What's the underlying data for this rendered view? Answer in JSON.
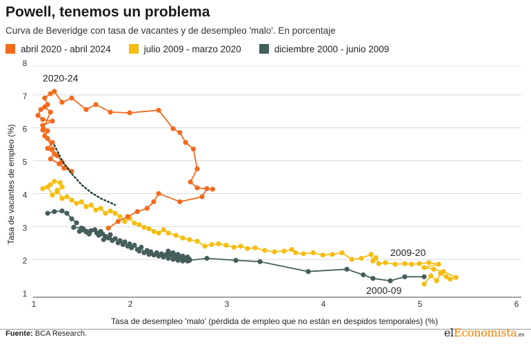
{
  "title": "Powell, tenemos un problema",
  "subtitle": "Curva de Beveridge con tasa de vacantes y de desempleo 'malo'. En porcentaje",
  "source_label": "Fuente:",
  "source_text": " BCA Research.",
  "logo": {
    "part1": "el",
    "part2": "Economista",
    "part3": ".es"
  },
  "colors": {
    "orange": "#f26a1b",
    "yellow": "#f5bd0f",
    "darkgray": "#445e5c",
    "dotted": "#173d33"
  },
  "chart_data": {
    "type": "line",
    "title": "Powell, tenemos un problema",
    "xlabel": "Tasa de desempleo 'malo' (pérdida de empleo que no están en despidos temporales) (%)",
    "ylabel": "Tasa de vacantes de empleo (%)",
    "xlim": [
      1,
      6
    ],
    "ylim": [
      1,
      8
    ],
    "xticks": [
      1,
      2,
      3,
      4,
      5,
      6
    ],
    "yticks": [
      1,
      2,
      3,
      4,
      5,
      6,
      7,
      8
    ],
    "grid": "horizontal",
    "legend_position": "top-left",
    "series": [
      {
        "name": "diciembre 2000 - junio 2009",
        "color": "darkgray",
        "points": [
          [
            1.15,
            3.55
          ],
          [
            1.22,
            3.6
          ],
          [
            1.3,
            3.62
          ],
          [
            1.35,
            3.55
          ],
          [
            1.4,
            3.38
          ],
          [
            1.45,
            3.26
          ],
          [
            1.42,
            3.12
          ],
          [
            1.5,
            3.1
          ],
          [
            1.48,
            3.0
          ],
          [
            1.55,
            2.98
          ],
          [
            1.52,
            3.08
          ],
          [
            1.6,
            3.02
          ],
          [
            1.58,
            2.92
          ],
          [
            1.64,
            3.05
          ],
          [
            1.66,
            2.95
          ],
          [
            1.68,
            2.88
          ],
          [
            1.7,
            3.0
          ],
          [
            1.72,
            2.92
          ],
          [
            1.75,
            2.85
          ],
          [
            1.73,
            2.75
          ],
          [
            1.78,
            2.8
          ],
          [
            1.8,
            2.9
          ],
          [
            1.82,
            2.72
          ],
          [
            1.85,
            2.78
          ],
          [
            1.88,
            2.65
          ],
          [
            1.9,
            2.72
          ],
          [
            1.93,
            2.6
          ],
          [
            1.95,
            2.68
          ],
          [
            1.98,
            2.55
          ],
          [
            2.0,
            2.62
          ],
          [
            2.02,
            2.5
          ],
          [
            2.05,
            2.58
          ],
          [
            2.08,
            2.45
          ],
          [
            2.1,
            2.4
          ],
          [
            2.12,
            2.52
          ],
          [
            2.15,
            2.35
          ],
          [
            2.18,
            2.42
          ],
          [
            2.2,
            2.3
          ],
          [
            2.22,
            2.38
          ],
          [
            2.25,
            2.28
          ],
          [
            2.28,
            2.35
          ],
          [
            2.3,
            2.25
          ],
          [
            2.33,
            2.32
          ],
          [
            2.35,
            2.22
          ],
          [
            2.38,
            2.3
          ],
          [
            2.4,
            2.18
          ],
          [
            2.42,
            2.27
          ],
          [
            2.45,
            2.15
          ],
          [
            2.48,
            2.22
          ],
          [
            2.5,
            2.12
          ],
          [
            2.52,
            2.2
          ],
          [
            2.55,
            2.1
          ],
          [
            2.58,
            2.18
          ],
          [
            2.6,
            2.22
          ],
          [
            2.62,
            2.15
          ],
          [
            2.6,
            2.1
          ],
          [
            2.55,
            2.25
          ],
          [
            2.5,
            2.3
          ],
          [
            2.45,
            2.35
          ],
          [
            2.4,
            2.4
          ],
          [
            2.45,
            2.3
          ],
          [
            2.55,
            2.15
          ],
          [
            2.62,
            2.12
          ],
          [
            2.8,
            2.18
          ],
          [
            3.1,
            2.12
          ],
          [
            3.35,
            2.08
          ],
          [
            3.85,
            1.78
          ],
          [
            4.25,
            1.85
          ],
          [
            4.42,
            1.68
          ],
          [
            4.52,
            1.57
          ],
          [
            4.7,
            1.5
          ],
          [
            4.85,
            1.62
          ],
          [
            5.05,
            1.62
          ]
        ]
      },
      {
        "name": "julio 2009 - marzo 2020",
        "color": "yellow",
        "points": [
          [
            5.05,
            1.4
          ],
          [
            5.12,
            1.65
          ],
          [
            5.18,
            1.5
          ],
          [
            5.22,
            1.72
          ],
          [
            5.28,
            1.62
          ],
          [
            5.32,
            1.55
          ],
          [
            5.38,
            1.6
          ],
          [
            5.25,
            1.78
          ],
          [
            5.15,
            1.85
          ],
          [
            5.05,
            1.9
          ],
          [
            5.2,
            2.0
          ],
          [
            5.1,
            2.05
          ],
          [
            5.0,
            2.02
          ],
          [
            4.92,
            2.0
          ],
          [
            4.85,
            2.02
          ],
          [
            4.75,
            2.0
          ],
          [
            4.65,
            2.05
          ],
          [
            4.58,
            2.02
          ],
          [
            4.55,
            2.2
          ],
          [
            4.52,
            2.1
          ],
          [
            4.5,
            2.3
          ],
          [
            4.4,
            2.18
          ],
          [
            4.3,
            2.15
          ],
          [
            4.2,
            2.35
          ],
          [
            4.1,
            2.3
          ],
          [
            4.0,
            2.28
          ],
          [
            3.9,
            2.35
          ],
          [
            3.8,
            2.32
          ],
          [
            3.72,
            2.35
          ],
          [
            3.68,
            2.45
          ],
          [
            3.6,
            2.4
          ],
          [
            3.5,
            2.38
          ],
          [
            3.4,
            2.42
          ],
          [
            3.3,
            2.5
          ],
          [
            3.22,
            2.48
          ],
          [
            3.15,
            2.55
          ],
          [
            3.08,
            2.52
          ],
          [
            3.0,
            2.58
          ],
          [
            2.92,
            2.62
          ],
          [
            2.85,
            2.6
          ],
          [
            2.78,
            2.55
          ],
          [
            2.7,
            2.7
          ],
          [
            2.62,
            2.75
          ],
          [
            2.55,
            2.8
          ],
          [
            2.48,
            2.88
          ],
          [
            2.4,
            2.95
          ],
          [
            2.35,
            3.05
          ],
          [
            2.3,
            2.95
          ],
          [
            2.25,
            3.0
          ],
          [
            2.2,
            3.08
          ],
          [
            2.15,
            3.12
          ],
          [
            2.1,
            3.2
          ],
          [
            2.05,
            3.25
          ],
          [
            2.0,
            3.4
          ],
          [
            1.95,
            3.3
          ],
          [
            1.9,
            3.45
          ],
          [
            1.85,
            3.55
          ],
          [
            1.8,
            3.62
          ],
          [
            1.75,
            3.55
          ],
          [
            1.7,
            3.7
          ],
          [
            1.65,
            3.65
          ],
          [
            1.6,
            3.8
          ],
          [
            1.55,
            3.75
          ],
          [
            1.5,
            3.9
          ],
          [
            1.45,
            3.85
          ],
          [
            1.4,
            3.95
          ],
          [
            1.35,
            4.05
          ],
          [
            1.3,
            4.0
          ],
          [
            1.25,
            4.25
          ],
          [
            1.2,
            4.1
          ],
          [
            1.15,
            4.35
          ],
          [
            1.1,
            4.3
          ],
          [
            1.18,
            4.42
          ],
          [
            1.22,
            4.52
          ],
          [
            1.28,
            4.48
          ],
          [
            1.3,
            4.35
          ],
          [
            1.25,
            4.2
          ]
        ]
      },
      {
        "name": "abril 2020 - abril 2024",
        "color": "orange",
        "points": [
          [
            1.78,
            3.1
          ],
          [
            1.88,
            3.3
          ],
          [
            1.98,
            3.45
          ],
          [
            2.08,
            3.6
          ],
          [
            2.18,
            3.7
          ],
          [
            2.25,
            3.9
          ],
          [
            2.3,
            4.15
          ],
          [
            2.52,
            3.9
          ],
          [
            2.75,
            4.05
          ],
          [
            2.8,
            4.3
          ],
          [
            2.86,
            4.28
          ],
          [
            2.7,
            4.32
          ],
          [
            2.63,
            4.5
          ],
          [
            2.7,
            4.9
          ],
          [
            2.66,
            5.5
          ],
          [
            2.58,
            5.7
          ],
          [
            2.52,
            6.0
          ],
          [
            2.45,
            6.12
          ],
          [
            2.3,
            6.68
          ],
          [
            2.0,
            6.6
          ],
          [
            1.8,
            6.62
          ],
          [
            1.65,
            6.85
          ],
          [
            1.55,
            6.7
          ],
          [
            1.4,
            7.05
          ],
          [
            1.3,
            6.92
          ],
          [
            1.22,
            7.25
          ],
          [
            1.18,
            7.18
          ],
          [
            1.12,
            7.05
          ],
          [
            1.15,
            6.85
          ],
          [
            1.08,
            6.7
          ],
          [
            1.05,
            6.52
          ],
          [
            1.1,
            6.4
          ],
          [
            1.2,
            6.35
          ],
          [
            1.1,
            6.22
          ],
          [
            1.15,
            6.05
          ],
          [
            1.12,
            5.9
          ],
          [
            1.2,
            5.7
          ],
          [
            1.15,
            5.52
          ],
          [
            1.22,
            5.35
          ],
          [
            1.18,
            5.2
          ],
          [
            1.27,
            5.05
          ],
          [
            1.32,
            4.92
          ],
          [
            1.4,
            4.82
          ],
          [
            1.3,
            5.1
          ],
          [
            1.25,
            5.3
          ],
          [
            1.2,
            5.5
          ],
          [
            1.15,
            5.82
          ],
          [
            1.1,
            6.08
          ],
          [
            1.18,
            6.62
          ],
          [
            1.12,
            6.78
          ]
        ]
      }
    ],
    "trend": {
      "style": "dotted",
      "color": "dotted",
      "x": [
        1.22,
        1.3,
        1.4,
        1.5,
        1.6,
        1.7,
        1.8,
        1.85
      ],
      "y": [
        5.62,
        5.15,
        4.75,
        4.42,
        4.18,
        4.0,
        3.87,
        3.8
      ]
    },
    "annotations": [
      {
        "text": "2020-24",
        "x": 1.1,
        "y": 7.55
      },
      {
        "text": "2009-20",
        "x": 4.7,
        "y": 2.25
      },
      {
        "text": "2000-09",
        "x": 4.45,
        "y": 1.1
      }
    ]
  }
}
